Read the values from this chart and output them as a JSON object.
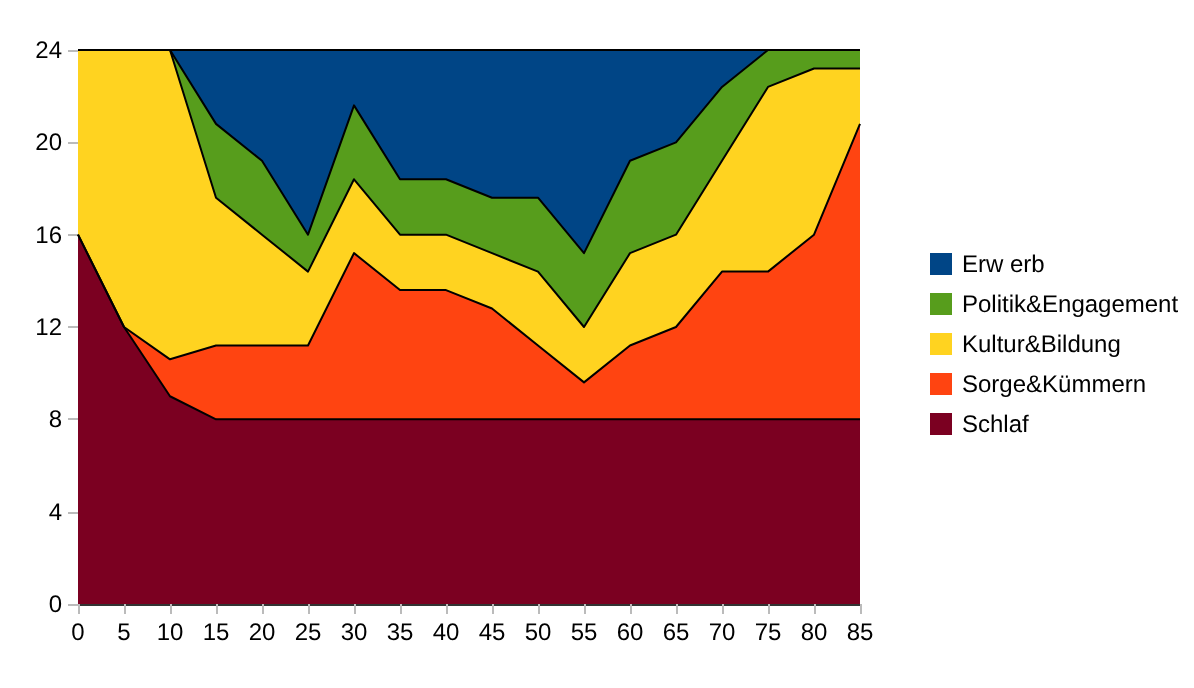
{
  "chart_data": {
    "type": "area",
    "stacked": true,
    "legend": "right",
    "grid": false,
    "marker": "none",
    "categories": [
      "0",
      "5",
      "10",
      "15",
      "20",
      "25",
      "30",
      "35",
      "40",
      "45",
      "50",
      "55",
      "60",
      "65",
      "70",
      "75",
      "80",
      "85"
    ],
    "ylim": [
      0,
      24
    ],
    "yticks": [
      0,
      4,
      8,
      12,
      16,
      20,
      24
    ],
    "series": [
      {
        "name": "Schlaf",
        "color": "#7b0021",
        "values": [
          16,
          12,
          9,
          8,
          8,
          8,
          8,
          8,
          8,
          8,
          8,
          8,
          8,
          8,
          8,
          8,
          8,
          8
        ]
      },
      {
        "name": "Sorge&Kümmern",
        "color": "#ff4411",
        "values": [
          0,
          0,
          1.6,
          3.2,
          3.2,
          3.2,
          7.2,
          5.6,
          5.6,
          4.8,
          3.2,
          1.6,
          3.2,
          4,
          6.4,
          6.4,
          8,
          12.8
        ]
      },
      {
        "name": "Kultur&Bildung",
        "color": "#ffd320",
        "values": [
          8,
          12,
          13.4,
          6.4,
          4.8,
          3.2,
          3.2,
          2.4,
          2.4,
          2.4,
          3.2,
          2.4,
          4,
          4,
          4.8,
          8,
          7.2,
          2.4
        ]
      },
      {
        "name": "Politik&Engagement",
        "color": "#579d1c",
        "values": [
          0,
          0,
          0,
          3.2,
          3.2,
          1.6,
          3.2,
          2.4,
          2.4,
          2.4,
          3.2,
          3.2,
          4,
          4,
          3.2,
          1.6,
          0.8,
          0.8
        ]
      },
      {
        "name": "Erw erb",
        "color": "#004586",
        "values": [
          0,
          0,
          0,
          3.2,
          4.8,
          8,
          2.4,
          5.6,
          5.6,
          6.4,
          6.4,
          8.8,
          4.8,
          4,
          1.6,
          0,
          0,
          0
        ]
      }
    ]
  }
}
